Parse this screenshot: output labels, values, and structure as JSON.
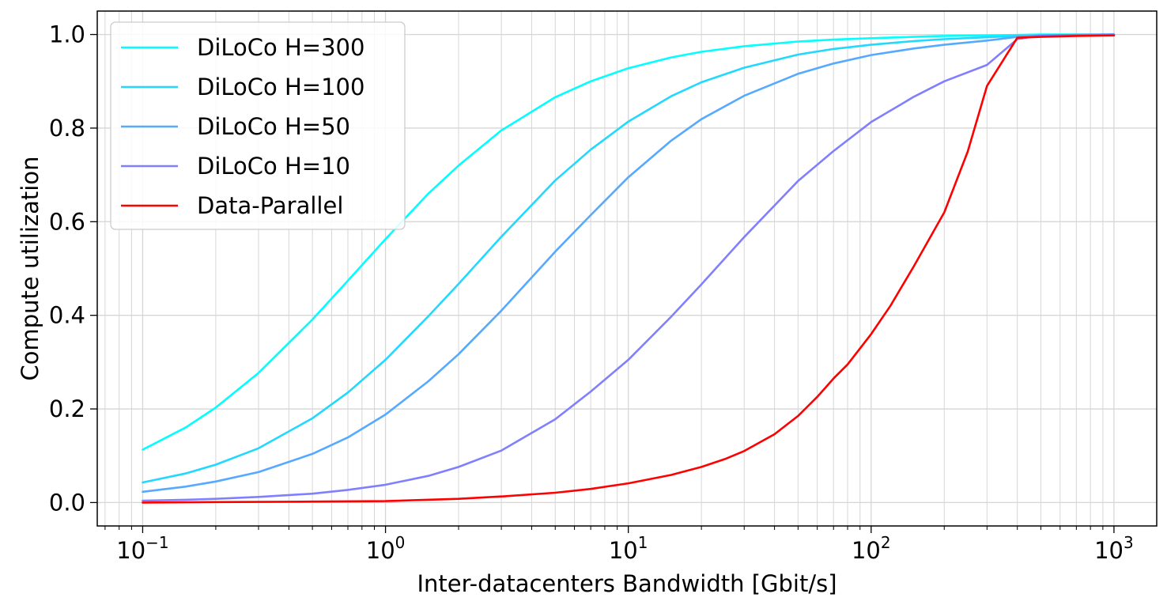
{
  "chart_data": {
    "type": "line",
    "xlabel": "Inter-datacenters Bandwidth [Gbit/s]",
    "ylabel": "Compute utilization",
    "x_scale": "log",
    "xlim": [
      0.065,
      1500
    ],
    "ylim": [
      -0.05,
      1.05
    ],
    "grid": true,
    "legend_position": "top-left",
    "x_ticks": [
      {
        "value": 0.1,
        "base": "10",
        "exp": "−1"
      },
      {
        "value": 1,
        "base": "10",
        "exp": "0"
      },
      {
        "value": 10,
        "base": "10",
        "exp": "1"
      },
      {
        "value": 100,
        "base": "10",
        "exp": "2"
      },
      {
        "value": 1000,
        "base": "10",
        "exp": "3"
      }
    ],
    "y_ticks": [
      {
        "value": 0.0,
        "label": "0.0"
      },
      {
        "value": 0.2,
        "label": "0.2"
      },
      {
        "value": 0.4,
        "label": "0.4"
      },
      {
        "value": 0.6,
        "label": "0.6"
      },
      {
        "value": 0.8,
        "label": "0.8"
      },
      {
        "value": 1.0,
        "label": "1.0"
      }
    ],
    "series": [
      {
        "name": "DiLoCo H=300",
        "color": "#00ffff",
        "x": [
          0.1,
          0.15,
          0.2,
          0.3,
          0.5,
          0.7,
          1,
          1.5,
          2,
          3,
          5,
          7,
          10,
          15,
          20,
          30,
          50,
          70,
          100,
          150,
          200,
          300,
          400,
          500,
          700,
          1000
        ],
        "y": [
          0.113,
          0.16,
          0.203,
          0.277,
          0.391,
          0.474,
          0.563,
          0.66,
          0.72,
          0.795,
          0.866,
          0.9,
          0.928,
          0.951,
          0.963,
          0.975,
          0.985,
          0.989,
          0.992,
          0.995,
          0.997,
          0.998,
          0.999,
          1.0,
          1.0,
          1.0
        ]
      },
      {
        "name": "DiLoCo H=100",
        "color": "#22d8ff",
        "x": [
          0.1,
          0.15,
          0.2,
          0.3,
          0.5,
          0.7,
          1,
          1.5,
          2,
          3,
          5,
          7,
          10,
          15,
          20,
          30,
          50,
          70,
          100,
          150,
          200,
          300,
          400,
          500,
          700,
          1000
        ],
        "y": [
          0.043,
          0.062,
          0.081,
          0.116,
          0.18,
          0.235,
          0.305,
          0.398,
          0.467,
          0.568,
          0.688,
          0.754,
          0.814,
          0.868,
          0.898,
          0.929,
          0.957,
          0.969,
          0.978,
          0.986,
          0.99,
          0.994,
          0.997,
          0.998,
          0.999,
          1.0
        ]
      },
      {
        "name": "DiLoCo H=50",
        "color": "#55aaff",
        "x": [
          0.1,
          0.15,
          0.2,
          0.3,
          0.5,
          0.7,
          1,
          1.5,
          2,
          3,
          5,
          7,
          10,
          15,
          20,
          30,
          50,
          70,
          100,
          150,
          200,
          300,
          400,
          500,
          700,
          1000
        ],
        "y": [
          0.023,
          0.034,
          0.045,
          0.065,
          0.104,
          0.139,
          0.188,
          0.259,
          0.317,
          0.41,
          0.536,
          0.614,
          0.695,
          0.773,
          0.819,
          0.869,
          0.916,
          0.938,
          0.956,
          0.97,
          0.978,
          0.987,
          0.995,
          0.998,
          0.999,
          1.0
        ]
      },
      {
        "name": "DiLoCo H=10",
        "color": "#8080ff",
        "x": [
          0.1,
          0.15,
          0.2,
          0.3,
          0.5,
          0.7,
          1,
          1.5,
          2,
          3,
          5,
          7,
          10,
          15,
          20,
          30,
          50,
          70,
          100,
          150,
          200,
          300,
          400,
          500,
          700,
          1000
        ],
        "y": [
          0.004,
          0.006,
          0.008,
          0.012,
          0.019,
          0.027,
          0.038,
          0.057,
          0.076,
          0.111,
          0.178,
          0.237,
          0.305,
          0.397,
          0.466,
          0.567,
          0.687,
          0.751,
          0.813,
          0.867,
          0.9,
          0.935,
          0.99,
          0.998,
          0.999,
          1.0
        ]
      },
      {
        "name": "Data-Parallel",
        "color": "#ff0000",
        "x": [
          0.1,
          0.2,
          0.5,
          1,
          2,
          3,
          5,
          7,
          10,
          15,
          20,
          25,
          30,
          40,
          50,
          60,
          70,
          80,
          100,
          120,
          150,
          200,
          250,
          300,
          400,
          500,
          700,
          1000
        ],
        "y": [
          0.0,
          0.001,
          0.002,
          0.003,
          0.008,
          0.013,
          0.021,
          0.029,
          0.041,
          0.059,
          0.076,
          0.093,
          0.11,
          0.146,
          0.185,
          0.226,
          0.265,
          0.295,
          0.36,
          0.42,
          0.505,
          0.62,
          0.75,
          0.89,
          0.993,
          0.995,
          0.997,
          0.998
        ]
      }
    ]
  }
}
